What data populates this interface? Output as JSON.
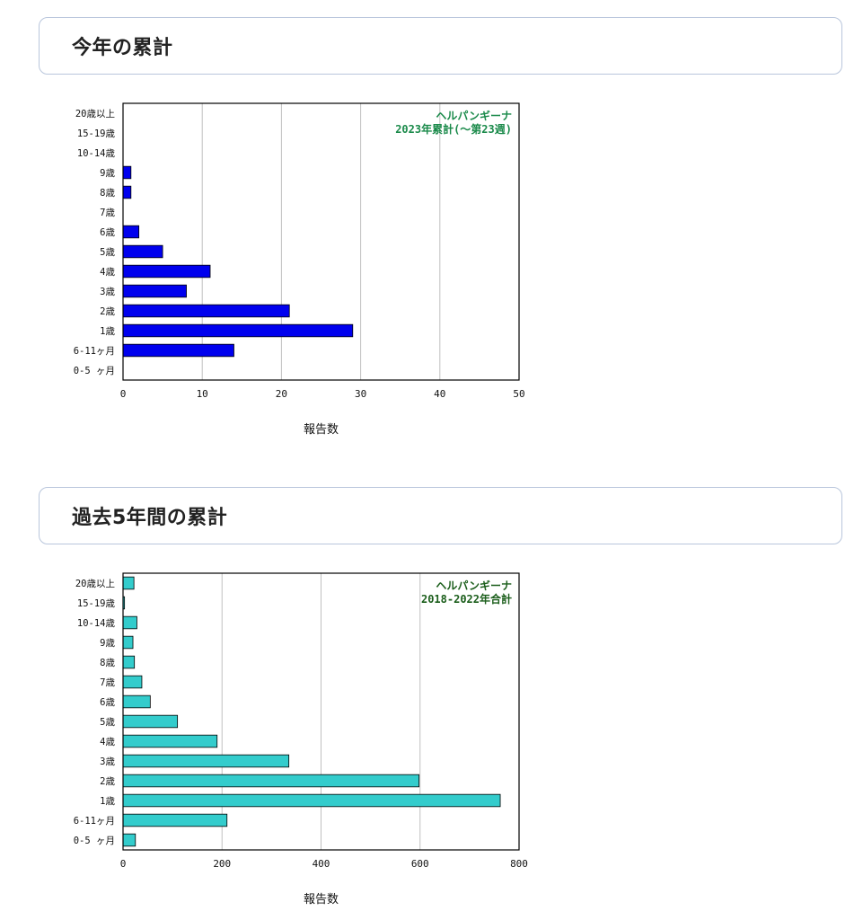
{
  "sections": [
    {
      "title": "今年の累計"
    },
    {
      "title": "過去5年間の累計"
    }
  ],
  "chart_data": [
    {
      "type": "bar",
      "orientation": "horizontal",
      "categories": [
        "20歳以上",
        "15-19歳",
        "10-14歳",
        "9歳",
        "8歳",
        "7歳",
        "6歳",
        "5歳",
        "4歳",
        "3歳",
        "2歳",
        "1歳",
        "6-11ヶ月",
        "0-5 ヶ月"
      ],
      "series": [
        {
          "values": [
            0,
            0,
            0,
            1,
            1,
            0,
            2,
            5,
            11,
            8,
            21,
            29,
            14,
            0
          ]
        }
      ],
      "legend": [
        "ヘルパンギーナ",
        "2023年累計(～第23週)"
      ],
      "legend_position": "top-right",
      "xlabel": "報告数",
      "xlim": [
        0,
        50
      ],
      "xticks": [
        0,
        10,
        20,
        30,
        40,
        50
      ],
      "grid": true,
      "colors": {
        "bar": "#0000ee",
        "legend": "#1a8a4a"
      }
    },
    {
      "type": "bar",
      "orientation": "horizontal",
      "categories": [
        "20歳以上",
        "15-19歳",
        "10-14歳",
        "9歳",
        "8歳",
        "7歳",
        "6歳",
        "5歳",
        "4歳",
        "3歳",
        "2歳",
        "1歳",
        "6-11ヶ月",
        "0-5 ヶ月"
      ],
      "series": [
        {
          "values": [
            22,
            3,
            28,
            20,
            23,
            38,
            55,
            110,
            190,
            335,
            598,
            762,
            210,
            25
          ]
        }
      ],
      "legend": [
        "ヘルパンギーナ",
        "2018-2022年合計"
      ],
      "legend_position": "top-right",
      "xlabel": "報告数",
      "xlim": [
        0,
        800
      ],
      "xticks": [
        0,
        200,
        400,
        600,
        800
      ],
      "grid": true,
      "colors": {
        "bar": "#33cccc",
        "legend": "#1b5e1b"
      }
    }
  ]
}
